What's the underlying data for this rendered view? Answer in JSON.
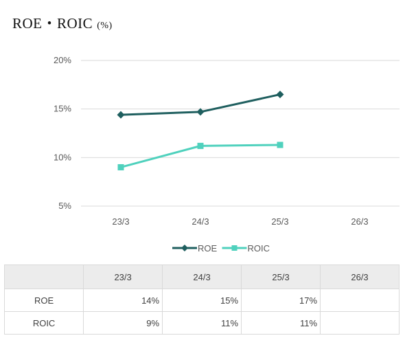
{
  "title": "ROE・ROIC",
  "title_unit": "(%)",
  "chart_data": {
    "type": "line",
    "categories": [
      "23/3",
      "24/3",
      "25/3",
      "26/3"
    ],
    "y_ticks": [
      "5%",
      "10%",
      "15%",
      "20%"
    ],
    "ylim": [
      5,
      20
    ],
    "grid": true,
    "legend_position": "bottom",
    "series": [
      {
        "name": "ROE",
        "values": [
          14.4,
          14.7,
          16.5,
          null
        ],
        "color": "#1f5f5f",
        "marker": "diamond"
      },
      {
        "name": "ROIC",
        "values": [
          9.0,
          11.2,
          11.3,
          null
        ],
        "color": "#4fd1bd",
        "marker": "square"
      }
    ]
  },
  "table": {
    "header": [
      "",
      "23/3",
      "24/3",
      "25/3",
      "26/3"
    ],
    "rows": [
      {
        "label": "ROE",
        "cells": [
          "14%",
          "15%",
          "17%",
          ""
        ]
      },
      {
        "label": "ROIC",
        "cells": [
          "9%",
          "11%",
          "11%",
          ""
        ]
      }
    ]
  }
}
